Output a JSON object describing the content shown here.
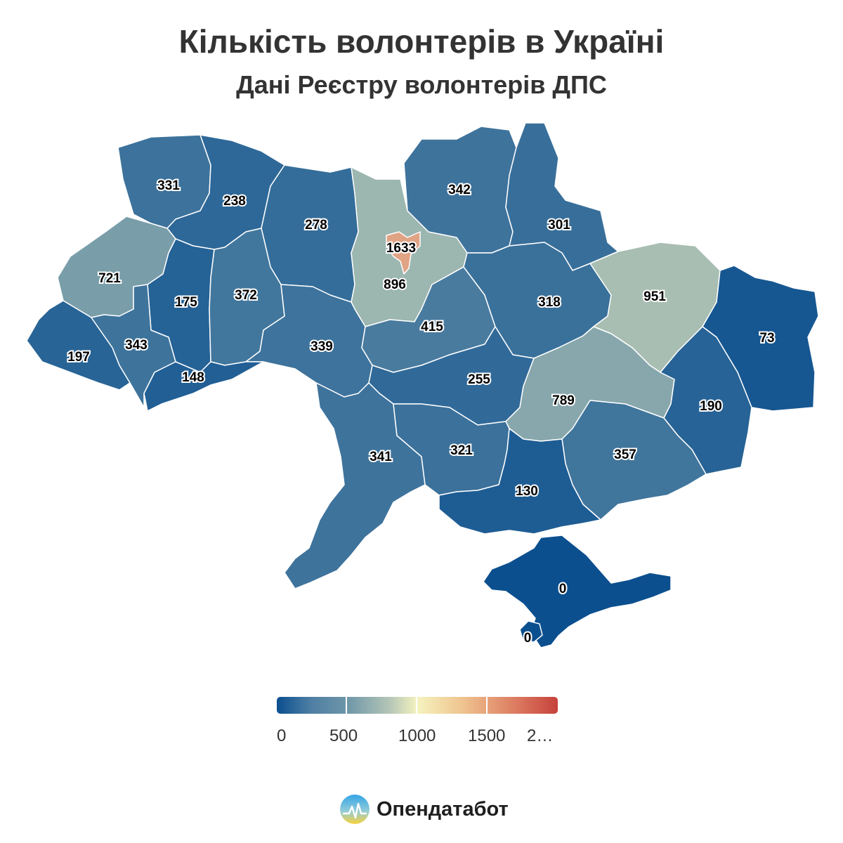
{
  "header": {
    "title": "Кількість волонтерів в Україні",
    "subtitle": "Дані Реєстру волонтерів ДПС"
  },
  "map_data": {
    "type": "choropleth",
    "scale": {
      "min": 0,
      "max": 2000,
      "stops": [
        "#0b4f8f",
        "#6e96a8",
        "#f5f3bf",
        "#c6413b"
      ]
    },
    "regions": [
      {
        "id": "volyn",
        "value": "331"
      },
      {
        "id": "rivne",
        "value": "238"
      },
      {
        "id": "zhytomyr",
        "value": "278"
      },
      {
        "id": "kyiv-city",
        "value": "1633"
      },
      {
        "id": "kyiv-oblast",
        "value": "896"
      },
      {
        "id": "chernihiv",
        "value": "342"
      },
      {
        "id": "sumy",
        "value": "301"
      },
      {
        "id": "lviv",
        "value": "721"
      },
      {
        "id": "ternopil",
        "value": "175"
      },
      {
        "id": "khmelnytskyi",
        "value": "372"
      },
      {
        "id": "vinnytsia",
        "value": "339"
      },
      {
        "id": "cherkasy",
        "value": "415"
      },
      {
        "id": "poltava",
        "value": "318"
      },
      {
        "id": "kharkiv",
        "value": "951"
      },
      {
        "id": "luhansk",
        "value": "73"
      },
      {
        "id": "zakarpattia",
        "value": "197"
      },
      {
        "id": "ivano-frankivsk",
        "value": "343"
      },
      {
        "id": "chernivtsi",
        "value": "148"
      },
      {
        "id": "kirovohrad",
        "value": "255"
      },
      {
        "id": "dnipropetrovsk",
        "value": "789"
      },
      {
        "id": "donetsk",
        "value": "190"
      },
      {
        "id": "odesa",
        "value": "341"
      },
      {
        "id": "mykolaiv",
        "value": "321"
      },
      {
        "id": "zaporizhzhia",
        "value": "357"
      },
      {
        "id": "kherson",
        "value": "130"
      },
      {
        "id": "crimea",
        "value": "0"
      },
      {
        "id": "sevastopol",
        "value": "0"
      }
    ]
  },
  "legend": {
    "ticks": [
      "0",
      "500",
      "1000",
      "1500",
      "2…"
    ]
  },
  "footer": {
    "brand": "Опендатабот",
    "logo_icon": "opendatabot-logo-icon"
  }
}
